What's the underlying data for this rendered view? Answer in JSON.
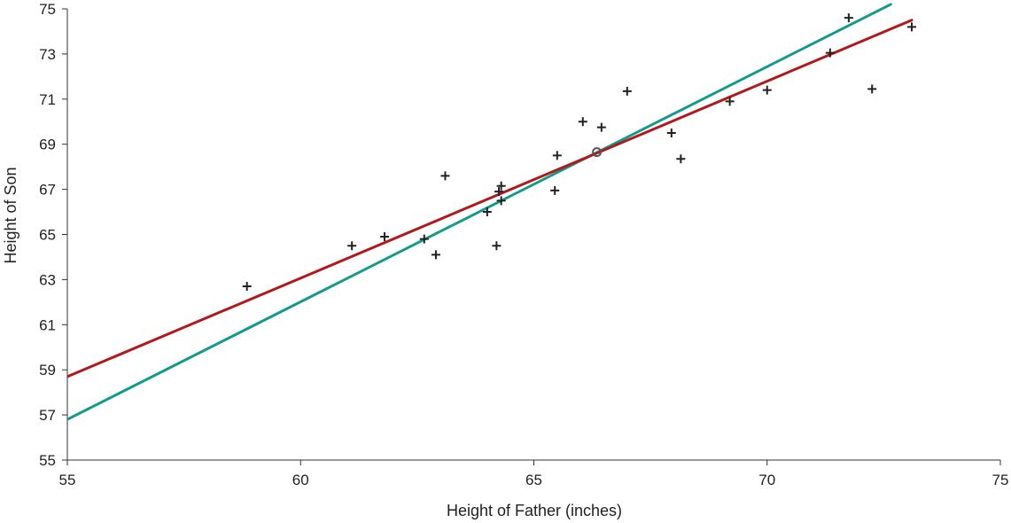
{
  "chart_data": {
    "type": "scatter",
    "title": "",
    "xlabel": "Height of Father (inches)",
    "ylabel": "Height of Son",
    "xlim": [
      55,
      75
    ],
    "ylim": [
      55,
      75
    ],
    "xticks": [
      "55",
      "60",
      "65",
      "70",
      "75"
    ],
    "yticks": [
      "55",
      "57",
      "59",
      "61",
      "63",
      "65",
      "67",
      "69",
      "71",
      "73",
      "75"
    ],
    "grid": false,
    "legend": "none",
    "points": {
      "marker": "plus",
      "color": "#222222",
      "x": [
        58.85,
        61.1,
        61.8,
        62.65,
        62.9,
        63.1,
        64.0,
        64.2,
        64.25,
        64.3,
        64.3,
        65.45,
        65.5,
        66.05,
        66.45,
        67.0,
        67.95,
        68.15,
        69.2,
        70.0,
        71.35,
        71.75,
        72.25,
        73.1
      ],
      "y": [
        62.7,
        64.5,
        64.9,
        64.8,
        64.1,
        67.6,
        66.0,
        64.5,
        66.9,
        67.15,
        66.5,
        66.95,
        68.5,
        70.0,
        69.75,
        71.35,
        69.5,
        68.35,
        70.9,
        71.4,
        73.05,
        74.6,
        71.45,
        74.2
      ]
    },
    "mean_point": {
      "x": 66.35,
      "y": 68.65,
      "marker": "open-circle",
      "color": "#555555"
    },
    "lines": [
      {
        "color": "#139a8c",
        "x": [
          55,
          72.65
        ],
        "y": [
          56.8,
          75.2
        ]
      },
      {
        "color": "#b2191d",
        "x": [
          55,
          73.1
        ],
        "y": [
          58.7,
          74.5
        ]
      }
    ]
  }
}
